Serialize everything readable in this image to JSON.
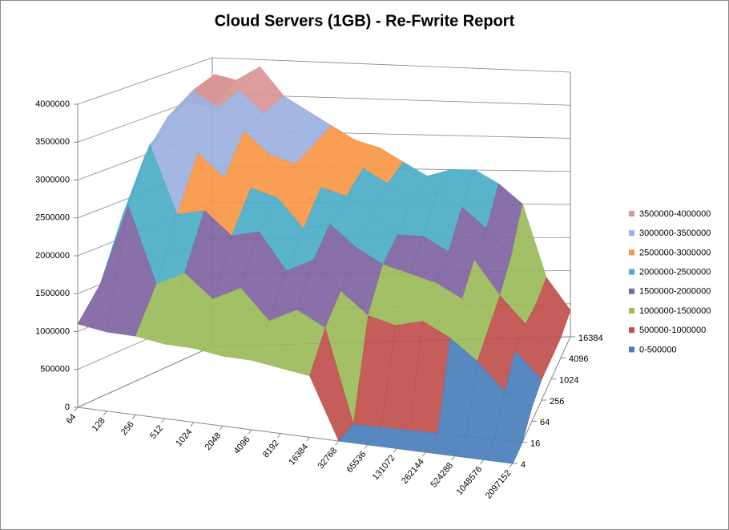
{
  "chart_data": {
    "type": "surface",
    "title": "Cloud Servers (1GB)  - Re-Fwrite Report",
    "categories": [
      "64",
      "128",
      "256",
      "512",
      "1024",
      "2048",
      "4096",
      "8192",
      "16384",
      "32768",
      "65536",
      "131072",
      "262144",
      "524288",
      "1048576",
      "2097152"
    ],
    "series": [
      {
        "name": "4",
        "values": [
          1100000,
          1050000,
          1050000,
          1000000,
          1000000,
          950000,
          950000,
          900000,
          850000,
          0,
          0,
          0,
          0,
          0,
          0,
          0
        ]
      },
      {
        "name": "16",
        "values": [
          1500000,
          2600000,
          1600000,
          1800000,
          1500000,
          1700000,
          1300000,
          1500000,
          1300000,
          0,
          0,
          0,
          0,
          0,
          0,
          0
        ]
      },
      {
        "name": "64",
        "values": [
          2300000,
          3300000,
          2400000,
          2500000,
          2200000,
          2300000,
          1800000,
          2000000,
          1600000,
          1300000,
          1200000,
          1300000,
          1100000,
          800000,
          400000,
          200000
        ]
      },
      {
        "name": "256",
        "values": [
          3000000,
          3500000,
          3100000,
          2800000,
          2700000,
          2600000,
          2200000,
          2300000,
          2000000,
          1800000,
          1700000,
          1600000,
          1400000,
          1000000,
          700000,
          300000
        ]
      },
      {
        "name": "1024",
        "values": [
          3400000,
          3800000,
          3600000,
          3300000,
          3000000,
          2900000,
          2600000,
          2500000,
          2300000,
          2000000,
          2000000,
          1800000,
          1700000,
          1200000,
          800000,
          300000
        ]
      },
      {
        "name": "4096",
        "values": [
          3500000,
          3900000,
          3700000,
          3400000,
          3200000,
          3000000,
          2800000,
          2700000,
          2500000,
          2300000,
          2400000,
          2200000,
          1900000,
          1500000,
          800000,
          300000
        ]
      },
      {
        "name": "16384",
        "values": [
          3300000,
          3700000,
          3900000,
          3500000,
          3300000,
          3100000,
          2900000,
          2800000,
          2600000,
          2400000,
          2500000,
          2500000,
          2300000,
          2000000,
          900000,
          400000
        ]
      }
    ],
    "bands": [
      {
        "name": "0-500000",
        "from": 0,
        "to": 500000,
        "color": "#4a7ebb"
      },
      {
        "name": "500000-1000000",
        "from": 500000,
        "to": 1000000,
        "color": "#c0504d"
      },
      {
        "name": "1000000-1500000",
        "from": 1000000,
        "to": 1500000,
        "color": "#9bbb59"
      },
      {
        "name": "1500000-2000000",
        "from": 1500000,
        "to": 2000000,
        "color": "#8064a2"
      },
      {
        "name": "2000000-2500000",
        "from": 2000000,
        "to": 2500000,
        "color": "#4bacc6"
      },
      {
        "name": "2500000-3000000",
        "from": 2500000,
        "to": 3000000,
        "color": "#f79646"
      },
      {
        "name": "3000000-3500000",
        "from": 3000000,
        "to": 3500000,
        "color": "#9cb0e0"
      },
      {
        "name": "3500000-4000000",
        "from": 3500000,
        "to": 4000000,
        "color": "#d99694"
      }
    ],
    "ylim": [
      0,
      4000000
    ],
    "yticks": [
      0,
      500000,
      1000000,
      1500000,
      2000000,
      2500000,
      3000000,
      3500000,
      4000000
    ],
    "grid": true
  }
}
